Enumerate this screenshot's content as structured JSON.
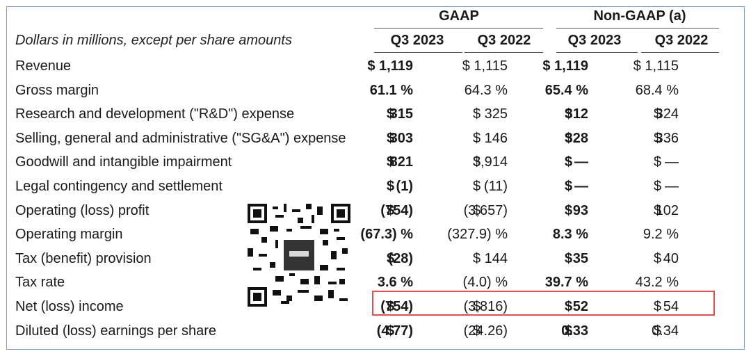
{
  "groups": {
    "gaap": "GAAP",
    "non_gaap": "Non-GAAP (a)"
  },
  "caption": "Dollars in millions, except per share amounts",
  "columns": [
    "Q3 2023",
    "Q3 2022",
    "Q3 2023",
    "Q3 2022"
  ],
  "rows": [
    {
      "label": "Revenue",
      "c": [
        "$ 1,119",
        "$ 1,115",
        "$ 1,119",
        "$ 1,115"
      ]
    },
    {
      "label": "Gross margin",
      "c": [
        "61.1 %",
        "64.3 %",
        "65.4 %",
        "68.4 %"
      ]
    },
    {
      "label": "Research and development (\"R&D\") expense",
      "d": [
        "$",
        "$",
        "$",
        "$"
      ],
      "c": [
        "315",
        "325",
        "312",
        "324"
      ]
    },
    {
      "label": "Selling, general and administrative (\"SG&A\") expense",
      "d": [
        "$",
        "$",
        "$",
        "$"
      ],
      "c": [
        "303",
        "146",
        "328",
        "336"
      ]
    },
    {
      "label": "Goodwill and intangible impairment",
      "d": [
        "$",
        "$",
        "$",
        "$"
      ],
      "c": [
        "821",
        "3,914",
        "—",
        "—"
      ]
    },
    {
      "label": "Legal contingency and settlement",
      "d": [
        "$",
        "$",
        "$",
        "$"
      ],
      "c": [
        "(1)",
        "(11)",
        "—",
        "—"
      ]
    },
    {
      "label": "Operating (loss) profit",
      "d": [
        "$",
        "$",
        "$",
        "$"
      ],
      "c": [
        "(754)",
        "(3,657)",
        "93",
        "102"
      ]
    },
    {
      "label": "Operating margin",
      "c": [
        "(67.3) %",
        "(327.9) %",
        "8.3 %",
        "9.2 %"
      ]
    },
    {
      "label": "Tax (benefit) provision",
      "d": [
        "$",
        "$",
        "$",
        "$"
      ],
      "c": [
        "(28)",
        "144",
        "35",
        "40"
      ]
    },
    {
      "label": "Tax rate",
      "c": [
        "3.6 %",
        "(4.0) %",
        "39.7 %",
        "43.2 %"
      ]
    },
    {
      "label": "Net (loss) income",
      "d": [
        "$",
        "$",
        "$",
        "$"
      ],
      "c": [
        "(754)",
        "(3,816)",
        "52",
        "54"
      ]
    },
    {
      "label": "Diluted (loss) earnings per share",
      "d": [
        "$",
        "$",
        "$",
        "$"
      ],
      "c": [
        "(4.77)",
        "(24.26)",
        "0.33",
        "0.34"
      ]
    }
  ]
}
